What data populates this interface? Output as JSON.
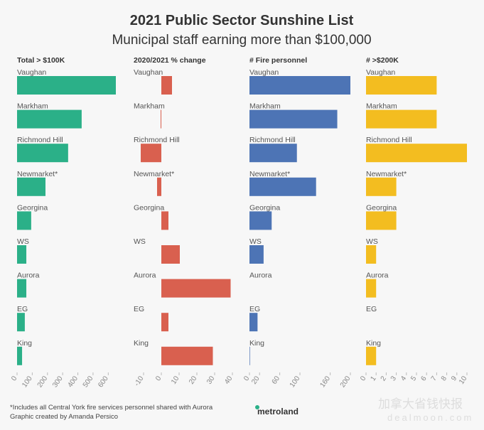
{
  "title": "2021 Public Sector Sunshine List",
  "subtitle": "Municipal staff earning more than $100,000",
  "footnote": "*Includes all Central York fire services personnel shared with Aurora",
  "credit": "Graphic created by Amanda Persico",
  "logo": "metroland",
  "watermark": "加拿大省钱快报",
  "watermark_url": "dealmoon.com",
  "chart_data": [
    {
      "type": "bar",
      "title": "Total > $100K",
      "color": "#2bb088",
      "categories": [
        "Vaughan",
        "Markham",
        "Richmond Hill",
        "Newmarket*",
        "Georgina",
        "WS",
        "Aurora",
        "EG",
        "King"
      ],
      "values": [
        650,
        425,
        336,
        187,
        93,
        61,
        61,
        51,
        33
      ],
      "xlim": [
        0,
        650
      ],
      "xticks": [
        0,
        100,
        200,
        300,
        400,
        500,
        600
      ]
    },
    {
      "type": "bar",
      "title": "2020/2021 % change",
      "color": "#d9604f",
      "categories": [
        "Vaughan",
        "Markham",
        "Richmond Hill",
        "Newmarket*",
        "Georgina",
        "WS",
        "Aurora",
        "EG",
        "King"
      ],
      "values": [
        6,
        -0.4,
        -11.6,
        -2.4,
        4,
        10.4,
        39,
        4,
        29
      ],
      "xlim": [
        -12,
        40
      ],
      "xticks": [
        -10,
        0,
        10,
        20,
        30,
        40
      ]
    },
    {
      "type": "bar",
      "title": "# Fire personnel",
      "color": "#4d74b5",
      "categories": [
        "Vaughan",
        "Markham",
        "Richmond Hill",
        "Newmarket*",
        "Georgina",
        "WS",
        "Aurora",
        "EG",
        "King"
      ],
      "values": [
        200,
        174,
        94,
        132,
        44,
        28,
        0,
        16,
        1
      ],
      "xlim": [
        0,
        200
      ],
      "xticks": [
        0,
        20,
        60,
        100,
        160,
        200
      ]
    },
    {
      "type": "bar",
      "title": "# >$200K",
      "color": "#f3bd20",
      "categories": [
        "Vaughan",
        "Markham",
        "Richmond Hill",
        "Newmarket*",
        "Georgina",
        "WS",
        "Aurora",
        "EG",
        "King"
      ],
      "values": [
        7,
        7,
        10,
        3,
        3,
        1,
        1,
        0,
        1
      ],
      "xlim": [
        0,
        10
      ],
      "xticks": [
        0,
        1,
        2,
        3,
        4,
        5,
        6,
        7,
        8,
        9,
        10
      ]
    }
  ]
}
